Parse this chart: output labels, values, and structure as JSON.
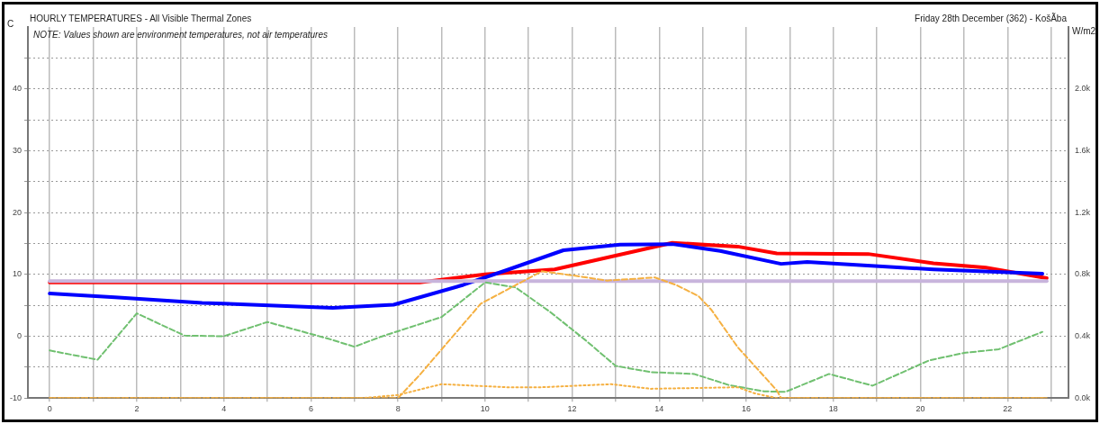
{
  "chart_data": {
    "type": "line",
    "title": "HOURLY TEMPERATURES - All Visible Thermal Zones",
    "subtitle": "Friday 28th December (362) - KošÃba",
    "ylabel": "C",
    "y2label": "W/m2",
    "annotations": [
      "NOTE: Values shown are environment temperatures, not air temperatures"
    ],
    "xlim": [
      -0.5,
      23.4
    ],
    "xticks": [
      0,
      {
        "value": 1,
        "label": null
      },
      2,
      {
        "value": 3,
        "label": null
      },
      4,
      {
        "value": 5,
        "label": null
      },
      6,
      {
        "value": 7,
        "label": null
      },
      8,
      {
        "value": 9,
        "label": null
      },
      10,
      {
        "value": 11,
        "label": null
      },
      12,
      {
        "value": 13,
        "label": null
      },
      14,
      {
        "value": 15,
        "label": null
      },
      16,
      {
        "value": 17,
        "label": null
      },
      18,
      {
        "value": 19,
        "label": null
      },
      20,
      {
        "value": 21,
        "label": null
      },
      22,
      {
        "value": 23,
        "label": null
      }
    ],
    "ylim": [
      -10,
      50
    ],
    "yticks": [
      -10,
      {
        "value": -5,
        "label": null
      },
      0,
      {
        "value": 5,
        "label": null
      },
      10,
      {
        "value": 15,
        "label": null
      },
      20,
      {
        "value": 25,
        "label": null
      },
      30,
      {
        "value": 35,
        "label": null
      },
      40,
      {
        "value": 45,
        "label": null
      }
    ],
    "y2lim": [
      0,
      2400
    ],
    "y2ticks": [
      {
        "value": 0,
        "label": "0.0k"
      },
      {
        "value": 200,
        "label": null
      },
      {
        "value": 400,
        "label": "0.4k"
      },
      {
        "value": 600,
        "label": null
      },
      {
        "value": 800,
        "label": "0.8k"
      },
      {
        "value": 1000,
        "label": null
      },
      {
        "value": 1200,
        "label": "1.2k"
      },
      {
        "value": 1400,
        "label": null
      },
      {
        "value": 1600,
        "label": "1.6k"
      },
      {
        "value": 1800,
        "label": null
      },
      {
        "value": 2000,
        "label": "2.0k"
      },
      {
        "value": 2200,
        "label": null
      }
    ],
    "grid": true,
    "marker": "none",
    "series": [
      {
        "color": "#f5b041",
        "line_style": "dashed",
        "axis": "y2",
        "x": [
          0,
          8.0,
          8.5,
          9.9,
          11.3,
          12.1,
          12.8,
          13.9,
          14.4,
          14.9,
          15.2,
          15.8,
          16.7,
          16.8,
          22.9
        ],
        "values": [
          0,
          0,
          150,
          610,
          820,
          790,
          760,
          780,
          730,
          660,
          570,
          330,
          50,
          0,
          0
        ]
      },
      {
        "color": "#f5b041",
        "line_style": "dotted",
        "axis": "y2",
        "x": [
          0,
          7.2,
          8.0,
          9.0,
          10.5,
          11.3,
          12.9,
          13.8,
          15.8,
          16.2,
          16.7,
          22.9
        ],
        "values": [
          0,
          0,
          20,
          90,
          70,
          70,
          90,
          60,
          70,
          30,
          0,
          0
        ]
      },
      {
        "color": "#70c070",
        "line_style": "dashed",
        "x": [
          0,
          1.1,
          2.0,
          3.1,
          4.0,
          5.0,
          6.4,
          7.0,
          7.6,
          9.0,
          10.0,
          10.7,
          11.5,
          12.3,
          13.0,
          13.8,
          14.8,
          15.6,
          16.4,
          16.9,
          17.9,
          18.9,
          20.2,
          21.0,
          21.8,
          22.8
        ],
        "values": [
          -2.3,
          -3.8,
          3.7,
          0.1,
          0.0,
          2.3,
          -0.4,
          -1.7,
          -0.1,
          3.1,
          8.7,
          7.9,
          3.9,
          -0.6,
          -4.8,
          -5.8,
          -6.1,
          -7.9,
          -8.9,
          -9.0,
          -6.1,
          -8.0,
          -3.9,
          -2.7,
          -2.1,
          0.7
        ]
      },
      {
        "color": "#c8b4dc",
        "line_style": "solid",
        "x": [
          0,
          22.9
        ],
        "values": [
          8.9,
          8.9
        ]
      },
      {
        "color": "#0000ff",
        "line_style": "solid",
        "x": [
          0,
          1.5,
          3.5,
          6.5,
          7.9,
          9.5,
          10.5,
          11.8,
          13.1,
          14.3,
          15.4,
          16.8,
          17.4,
          20.3,
          22.8
        ],
        "values": [
          6.9,
          6.3,
          5.4,
          4.6,
          5.1,
          8.3,
          10.7,
          13.9,
          14.8,
          14.9,
          13.8,
          11.7,
          12.0,
          10.8,
          10.1
        ]
      },
      {
        "color": "#ff0000",
        "line_style": "solid",
        "x": [
          0,
          8.5,
          10.0,
          11.6,
          14.3,
          15.8,
          16.7,
          18.8,
          20.3,
          21.5,
          22.9
        ],
        "values": [
          8.7,
          8.7,
          10.0,
          10.8,
          15.1,
          14.5,
          13.4,
          13.3,
          11.8,
          11.1,
          9.4
        ]
      }
    ]
  }
}
